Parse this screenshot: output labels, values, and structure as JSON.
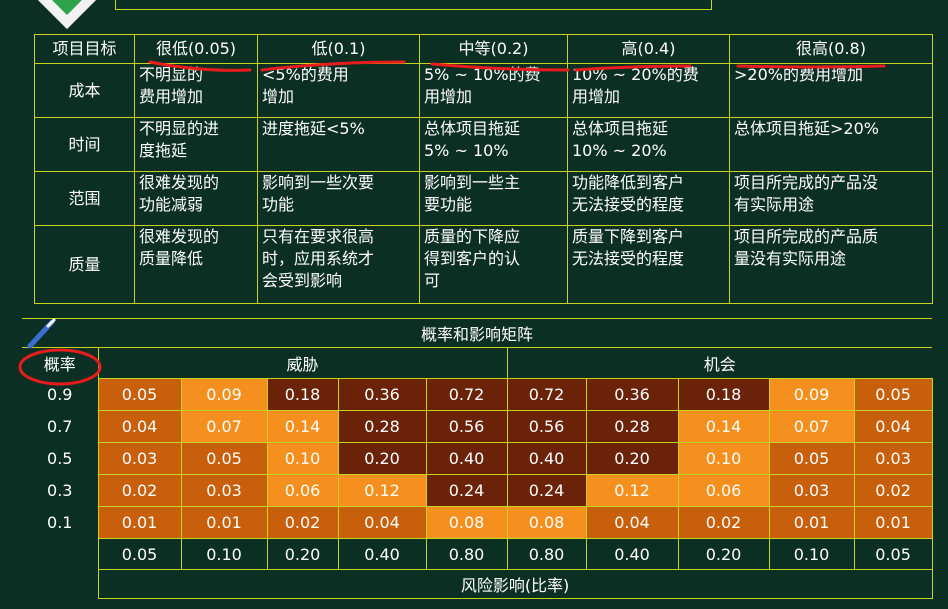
{
  "impact_table": {
    "headers": [
      "项目目标",
      "很低(0.05)",
      "低(0.1)",
      "中等(0.2)",
      "高(0.4)",
      "很高(0.8)"
    ],
    "rows": [
      {
        "objective": "成本",
        "cells": [
          "不明显的\n费用增加",
          "<5%的费用\n增加",
          "5% ~ 10%的费\n用增加",
          "10% ~ 20%的费\n用增加",
          ">20%的费用增加"
        ]
      },
      {
        "objective": "时间",
        "cells": [
          "不明显的进\n度拖延",
          "进度拖延<5%",
          "总体项目拖延\n5% ~ 10%",
          "总体项目拖延\n10% ~ 20%",
          "总体项目拖延>20%"
        ]
      },
      {
        "objective": "范围",
        "cells": [
          "很难发现的\n功能减弱",
          "影响到一些次要\n功能",
          "影响到一些主\n要功能",
          "功能降低到客户\n无法接受的程度",
          "项目所完成的产品没\n有实际用途"
        ]
      },
      {
        "objective": "质量",
        "cells": [
          "很难发现的\n质量降低",
          "只有在要求很高\n时，应用系统才\n会受到影响",
          "质量的下降应\n得到客户的认\n可",
          "质量下降到客户\n无法接受的程度",
          "项目所完成的产品质\n量没有实际用途"
        ]
      }
    ]
  },
  "matrix": {
    "title": "概率和影响矩阵",
    "probability_label": "概率",
    "threat_label": "威胁",
    "opportunity_label": "机会",
    "x_axis_title": "风险影响(比率)",
    "impact_values": [
      "0.05",
      "0.10",
      "0.20",
      "0.40",
      "0.80",
      "0.80",
      "0.40",
      "0.20",
      "0.10",
      "0.05"
    ],
    "rows": [
      {
        "probability": "0.9",
        "values": [
          "0.05",
          "0.09",
          "0.18",
          "0.36",
          "0.72",
          "0.72",
          "0.36",
          "0.18",
          "0.09",
          "0.05"
        ],
        "levels": [
          "a",
          "b",
          "c",
          "c",
          "c",
          "c",
          "c",
          "c",
          "b",
          "a"
        ]
      },
      {
        "probability": "0.7",
        "values": [
          "0.04",
          "0.07",
          "0.14",
          "0.28",
          "0.56",
          "0.56",
          "0.28",
          "0.14",
          "0.07",
          "0.04"
        ],
        "levels": [
          "a",
          "b",
          "b",
          "c",
          "c",
          "c",
          "c",
          "b",
          "b",
          "a"
        ]
      },
      {
        "probability": "0.5",
        "values": [
          "0.03",
          "0.05",
          "0.10",
          "0.20",
          "0.40",
          "0.40",
          "0.20",
          "0.10",
          "0.05",
          "0.03"
        ],
        "levels": [
          "a",
          "a",
          "b",
          "c",
          "c",
          "c",
          "c",
          "b",
          "a",
          "a"
        ]
      },
      {
        "probability": "0.3",
        "values": [
          "0.02",
          "0.03",
          "0.06",
          "0.12",
          "0.24",
          "0.24",
          "0.12",
          "0.06",
          "0.03",
          "0.02"
        ],
        "levels": [
          "a",
          "a",
          "b",
          "b",
          "c",
          "c",
          "b",
          "b",
          "a",
          "a"
        ]
      },
      {
        "probability": "0.1",
        "values": [
          "0.01",
          "0.01",
          "0.02",
          "0.04",
          "0.08",
          "0.08",
          "0.04",
          "0.02",
          "0.01",
          "0.01"
        ],
        "levels": [
          "a",
          "a",
          "a",
          "a",
          "b",
          "b",
          "a",
          "a",
          "a",
          "a"
        ]
      }
    ]
  },
  "colors": {
    "background": "#0c2f24",
    "grid_line": "#c9d21f",
    "level_a": "#c85f0b",
    "level_b": "#f5901f",
    "level_c": "#6a2208",
    "annotation": "#e81c1c"
  },
  "icons": [
    "logo-diamond-icon",
    "pen-icon"
  ]
}
